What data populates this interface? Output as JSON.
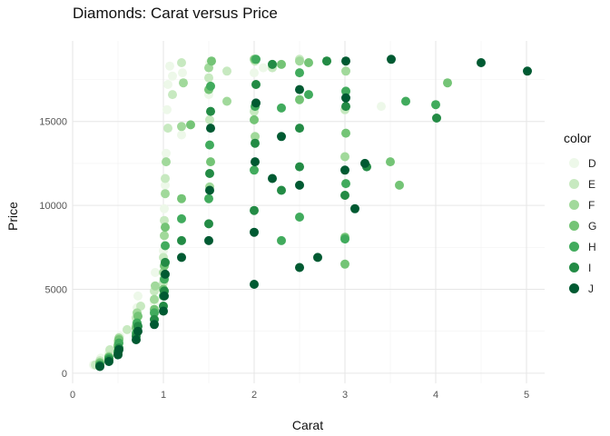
{
  "chart_data": {
    "type": "scatter",
    "title": "Diamonds: Carat versus Price",
    "xlabel": "Carat",
    "ylabel": "Price",
    "xlim": [
      0,
      5.2
    ],
    "ylim": [
      -600,
      19800
    ],
    "x_ticks": [
      0,
      1,
      2,
      3,
      4,
      5
    ],
    "y_ticks": [
      0,
      5000,
      10000,
      15000
    ],
    "grid": true,
    "legend": {
      "title": "color",
      "position": "right"
    },
    "series": [
      {
        "name": "D",
        "color": "#edf8e9",
        "points": [
          [
            0.23,
            500
          ],
          [
            0.3,
            650
          ],
          [
            0.31,
            900
          ],
          [
            0.4,
            1200
          ],
          [
            0.5,
            1700
          ],
          [
            0.52,
            2200
          ],
          [
            0.7,
            3000
          ],
          [
            0.71,
            3900
          ],
          [
            0.72,
            4600
          ],
          [
            0.9,
            4200
          ],
          [
            0.91,
            6000
          ],
          [
            1.0,
            5600
          ],
          [
            1.0,
            7300
          ],
          [
            1.01,
            9800
          ],
          [
            1.02,
            11200
          ],
          [
            1.03,
            13100
          ],
          [
            1.04,
            15700
          ],
          [
            1.05,
            17200
          ],
          [
            1.07,
            18300
          ],
          [
            1.1,
            17700
          ],
          [
            1.2,
            14200
          ],
          [
            1.21,
            17900
          ],
          [
            1.5,
            16600
          ],
          [
            1.51,
            18500
          ],
          [
            2.0,
            17900
          ],
          [
            2.02,
            18700
          ],
          [
            2.1,
            18200
          ],
          [
            3.4,
            15900
          ]
        ]
      },
      {
        "name": "E",
        "color": "#c7e9c0",
        "points": [
          [
            0.25,
            500
          ],
          [
            0.3,
            750
          ],
          [
            0.4,
            1000
          ],
          [
            0.41,
            1400
          ],
          [
            0.5,
            1900
          ],
          [
            0.6,
            2600
          ],
          [
            0.7,
            3300
          ],
          [
            0.75,
            4000
          ],
          [
            0.9,
            4900
          ],
          [
            1.0,
            5400
          ],
          [
            1.0,
            6900
          ],
          [
            1.01,
            9100
          ],
          [
            1.02,
            11600
          ],
          [
            1.05,
            14600
          ],
          [
            1.1,
            16600
          ],
          [
            1.2,
            18500
          ],
          [
            1.5,
            17600
          ],
          [
            1.51,
            15100
          ],
          [
            1.7,
            18000
          ],
          [
            2.0,
            15600
          ],
          [
            2.01,
            18600
          ],
          [
            2.2,
            18200
          ],
          [
            2.5,
            18700
          ],
          [
            3.0,
            15700
          ]
        ]
      },
      {
        "name": "F",
        "color": "#a1d99b",
        "points": [
          [
            0.3,
            650
          ],
          [
            0.4,
            1000
          ],
          [
            0.5,
            1700
          ],
          [
            0.51,
            2100
          ],
          [
            0.7,
            2800
          ],
          [
            0.71,
            3600
          ],
          [
            0.9,
            4400
          ],
          [
            0.91,
            5200
          ],
          [
            1.0,
            6000
          ],
          [
            1.01,
            8200
          ],
          [
            1.02,
            10700
          ],
          [
            1.03,
            12600
          ],
          [
            1.2,
            14700
          ],
          [
            1.22,
            17300
          ],
          [
            1.5,
            18200
          ],
          [
            1.51,
            11100
          ],
          [
            1.7,
            16200
          ],
          [
            2.0,
            18700
          ],
          [
            2.01,
            14100
          ],
          [
            2.2,
            18400
          ],
          [
            2.5,
            18600
          ],
          [
            3.0,
            12900
          ],
          [
            3.01,
            18000
          ]
        ]
      },
      {
        "name": "G",
        "color": "#74c476",
        "points": [
          [
            0.3,
            600
          ],
          [
            0.4,
            950
          ],
          [
            0.5,
            1600
          ],
          [
            0.51,
            2000
          ],
          [
            0.7,
            2700
          ],
          [
            0.72,
            3400
          ],
          [
            0.9,
            3800
          ],
          [
            1.0,
            5000
          ],
          [
            1.01,
            6400
          ],
          [
            1.02,
            8700
          ],
          [
            1.2,
            10400
          ],
          [
            1.3,
            14800
          ],
          [
            1.5,
            16900
          ],
          [
            1.52,
            12600
          ],
          [
            1.53,
            18600
          ],
          [
            2.0,
            15100
          ],
          [
            2.01,
            18700
          ],
          [
            2.3,
            18400
          ],
          [
            2.5,
            16300
          ],
          [
            2.6,
            18500
          ],
          [
            2.8,
            18600
          ],
          [
            3.0,
            6500
          ],
          [
            3.0,
            8100
          ],
          [
            3.01,
            14300
          ],
          [
            3.5,
            12600
          ],
          [
            3.6,
            11200
          ],
          [
            4.13,
            17300
          ]
        ]
      },
      {
        "name": "H",
        "color": "#41ab5d",
        "points": [
          [
            0.3,
            500
          ],
          [
            0.4,
            900
          ],
          [
            0.5,
            1300
          ],
          [
            0.51,
            1800
          ],
          [
            0.7,
            2400
          ],
          [
            0.71,
            3000
          ],
          [
            0.9,
            3600
          ],
          [
            1.0,
            4600
          ],
          [
            1.01,
            5600
          ],
          [
            1.02,
            7600
          ],
          [
            1.2,
            9200
          ],
          [
            1.5,
            10400
          ],
          [
            1.51,
            13600
          ],
          [
            1.52,
            17100
          ],
          [
            2.0,
            12100
          ],
          [
            2.01,
            15900
          ],
          [
            2.02,
            18700
          ],
          [
            2.3,
            7900
          ],
          [
            2.3,
            15800
          ],
          [
            2.5,
            9300
          ],
          [
            2.5,
            17900
          ],
          [
            2.6,
            16600
          ],
          [
            3.0,
            8000
          ],
          [
            3.01,
            11300
          ],
          [
            3.01,
            16800
          ],
          [
            3.67,
            16200
          ],
          [
            4.0,
            16000
          ]
        ]
      },
      {
        "name": "I",
        "color": "#238b45",
        "points": [
          [
            0.3,
            450
          ],
          [
            0.4,
            800
          ],
          [
            0.5,
            1200
          ],
          [
            0.51,
            1500
          ],
          [
            0.7,
            2200
          ],
          [
            0.72,
            2800
          ],
          [
            0.9,
            3200
          ],
          [
            1.0,
            4000
          ],
          [
            1.01,
            4900
          ],
          [
            1.02,
            6600
          ],
          [
            1.2,
            7900
          ],
          [
            1.5,
            8900
          ],
          [
            1.51,
            11900
          ],
          [
            1.52,
            15600
          ],
          [
            2.0,
            9700
          ],
          [
            2.01,
            13700
          ],
          [
            2.02,
            17200
          ],
          [
            2.2,
            18400
          ],
          [
            2.3,
            10900
          ],
          [
            2.5,
            12300
          ],
          [
            2.5,
            14600
          ],
          [
            2.8,
            18600
          ],
          [
            3.0,
            10600
          ],
          [
            3.01,
            15900
          ],
          [
            3.24,
            12300
          ],
          [
            4.01,
            15200
          ]
        ]
      },
      {
        "name": "J",
        "color": "#005a32",
        "points": [
          [
            0.3,
            400
          ],
          [
            0.4,
            700
          ],
          [
            0.5,
            1100
          ],
          [
            0.51,
            1400
          ],
          [
            0.7,
            2000
          ],
          [
            0.72,
            2500
          ],
          [
            0.9,
            2900
          ],
          [
            1.0,
            3700
          ],
          [
            1.01,
            4600
          ],
          [
            1.02,
            5900
          ],
          [
            1.2,
            6900
          ],
          [
            1.5,
            7900
          ],
          [
            1.51,
            10900
          ],
          [
            1.52,
            14600
          ],
          [
            2.0,
            5300
          ],
          [
            2.0,
            8400
          ],
          [
            2.01,
            12600
          ],
          [
            2.02,
            16100
          ],
          [
            2.2,
            11600
          ],
          [
            2.3,
            14100
          ],
          [
            2.5,
            6300
          ],
          [
            2.5,
            11200
          ],
          [
            2.5,
            16900
          ],
          [
            2.7,
            6900
          ],
          [
            3.0,
            12100
          ],
          [
            3.01,
            16400
          ],
          [
            3.01,
            18600
          ],
          [
            3.11,
            9800
          ],
          [
            3.22,
            12500
          ],
          [
            3.51,
            18700
          ],
          [
            4.5,
            18500
          ],
          [
            5.01,
            18000
          ]
        ]
      }
    ]
  }
}
